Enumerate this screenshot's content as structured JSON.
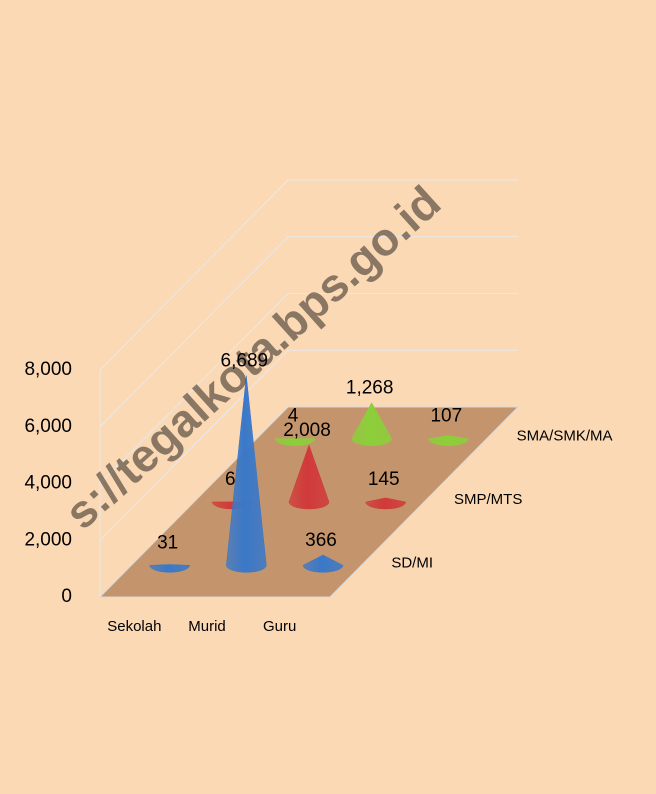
{
  "chart_data": {
    "type": "cone3d",
    "categories": [
      "Sekolah",
      "Murid",
      "Guru"
    ],
    "series": [
      {
        "name": "SD/MI",
        "color": "#3a78c8",
        "values": [
          31,
          6689,
          366
        ],
        "value_labels": [
          "31",
          "6,689",
          "366"
        ]
      },
      {
        "name": "SMP/MTS",
        "color": "#d03a3a",
        "values": [
          6,
          2008,
          145
        ],
        "value_labels": [
          "6",
          "2,008",
          "145"
        ]
      },
      {
        "name": "SMA/SMK/MA",
        "color": "#8ccf3a",
        "values": [
          4,
          1268,
          107
        ],
        "value_labels": [
          "4",
          "1,268",
          "107"
        ]
      }
    ],
    "ylim": [
      0,
      8000
    ],
    "yticks": [
      0,
      {
        "value": 2000,
        "label": "2,000"
      },
      {
        "value": 4000,
        "label": "4,000"
      },
      {
        "value": 6000,
        "label": "6,000"
      },
      {
        "value": 8000,
        "label": "8,000"
      }
    ],
    "grid": true,
    "watermark": "s://tegalkota.bps.go.id"
  }
}
